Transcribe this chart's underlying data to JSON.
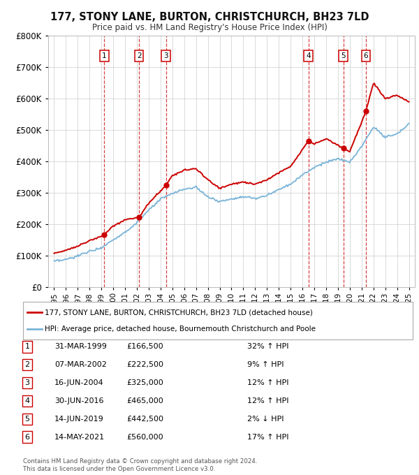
{
  "title": "177, STONY LANE, BURTON, CHRISTCHURCH, BH23 7LD",
  "subtitle": "Price paid vs. HM Land Registry's House Price Index (HPI)",
  "transactions": [
    {
      "num": 1,
      "date": "31-MAR-1999",
      "year": 1999.25,
      "price": 166500,
      "pct": "32%",
      "dir": "↑"
    },
    {
      "num": 2,
      "date": "07-MAR-2002",
      "year": 2002.19,
      "price": 222500,
      "pct": "9%",
      "dir": "↑"
    },
    {
      "num": 3,
      "date": "16-JUN-2004",
      "year": 2004.46,
      "price": 325000,
      "pct": "12%",
      "dir": "↑"
    },
    {
      "num": 4,
      "date": "30-JUN-2016",
      "year": 2016.5,
      "price": 465000,
      "pct": "12%",
      "dir": "↑"
    },
    {
      "num": 5,
      "date": "14-JUN-2019",
      "year": 2019.45,
      "price": 442500,
      "pct": "2%",
      "dir": "↓"
    },
    {
      "num": 6,
      "date": "14-MAY-2021",
      "year": 2021.37,
      "price": 560000,
      "pct": "17%",
      "dir": "↑"
    }
  ],
  "hpi_line_color": "#7ab4d8",
  "price_line_color": "#cc0000",
  "transaction_box_color": "#cc0000",
  "grid_color": "#cccccc",
  "background_color": "#ffffff",
  "ylim": [
    0,
    800000
  ],
  "yticks": [
    0,
    100000,
    200000,
    300000,
    400000,
    500000,
    600000,
    700000,
    800000
  ],
  "xlim": [
    1994.5,
    2025.5
  ],
  "xticks": [
    1995,
    1996,
    1997,
    1998,
    1999,
    2000,
    2001,
    2002,
    2003,
    2004,
    2005,
    2006,
    2007,
    2008,
    2009,
    2010,
    2011,
    2012,
    2013,
    2014,
    2015,
    2016,
    2017,
    2018,
    2019,
    2020,
    2021,
    2022,
    2023,
    2024,
    2025
  ],
  "legend_label_red": "177, STONY LANE, BURTON, CHRISTCHURCH, BH23 7LD (detached house)",
  "legend_label_blue": "HPI: Average price, detached house, Bournemouth Christchurch and Poole",
  "footer1": "Contains HM Land Registry data © Crown copyright and database right 2024.",
  "footer2": "This data is licensed under the Open Government Licence v3.0.",
  "hpi_years": [
    1995,
    1996,
    1997,
    1998,
    1999,
    2000,
    2001,
    2002,
    2003,
    2004,
    2005,
    2006,
    2007,
    2008,
    2009,
    2010,
    2011,
    2012,
    2013,
    2014,
    2015,
    2016,
    2017,
    2018,
    2019,
    2020,
    2021,
    2022,
    2023,
    2024,
    2025
  ],
  "hpi_vals": [
    82000,
    88000,
    100000,
    115000,
    126000,
    152000,
    175000,
    205000,
    245000,
    280000,
    298000,
    312000,
    318000,
    288000,
    272000,
    282000,
    288000,
    282000,
    292000,
    312000,
    328000,
    358000,
    382000,
    398000,
    408000,
    398000,
    448000,
    510000,
    478000,
    488000,
    520000
  ],
  "red_years": [
    1995,
    1996,
    1997,
    1998,
    1999.25,
    2000,
    2001,
    2002.19,
    2003,
    2004.46,
    2005,
    2006,
    2007,
    2008,
    2009,
    2010,
    2011,
    2012,
    2013,
    2014,
    2015,
    2016.5,
    2017,
    2018,
    2019.45,
    2020,
    2021.37,
    2022,
    2023,
    2024,
    2025
  ],
  "red_vals": [
    108000,
    118000,
    132000,
    148000,
    166500,
    195000,
    215000,
    222500,
    268000,
    325000,
    355000,
    372000,
    378000,
    342000,
    315000,
    328000,
    335000,
    328000,
    342000,
    365000,
    385000,
    465000,
    456000,
    472000,
    442500,
    432000,
    560000,
    650000,
    600000,
    610000,
    590000
  ]
}
